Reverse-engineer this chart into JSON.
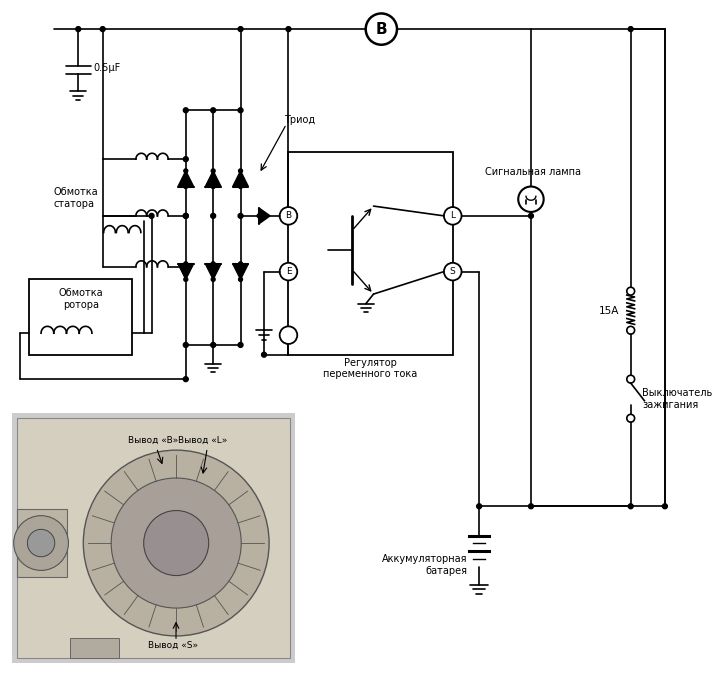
{
  "bg_color": "#ffffff",
  "labels": {
    "capacitor": "0.5μF",
    "triod": "Триод",
    "stator": "Обмотка\nстатора",
    "rotor": "Обмотка\nротора",
    "regulator": "Регулятор\nпеременного тока",
    "signal_lamp": "Сигнальная лампа",
    "fuse_15a": "15A",
    "ignition": "Выключатель\nзажигания",
    "battery": "Аккумуляторная\nбатарея",
    "terminal_B": "Вывод «B»",
    "terminal_L": "Вывод «L»",
    "terminal_S": "Вывод «S»"
  }
}
